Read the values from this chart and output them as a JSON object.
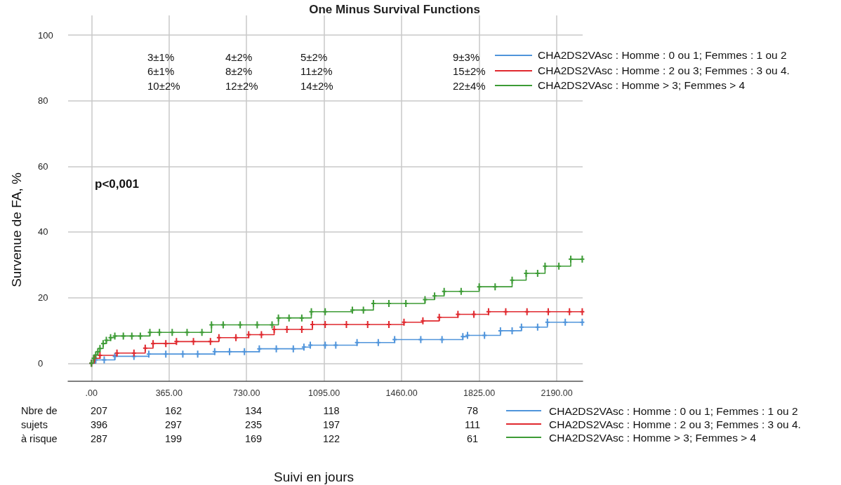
{
  "chart_data": {
    "type": "step",
    "title": "One Minus Survival Functions",
    "ylabel": "Survenue de FA, %",
    "annotations": [
      "p<0,001",
      "Nbre de\nsujets\nà risque",
      "3±1%\n6±1%\n10±2%",
      "4±2%\n8±2%\n12±2%",
      "5±2%\n11±2%\n14±2%",
      "9±3%\n15±2%\n22±4%",
      "207\n396\n287",
      "162\n297\n199",
      "134\n235\n169",
      "118\n197\n122",
      "78\n111\n61",
      "Suivi en jours"
    ],
    "xlim": [
      -110,
      2312
    ],
    "xticks": [
      {
        "value": 0,
        "label": ".00"
      },
      {
        "value": 365,
        "label": "365.00"
      },
      {
        "value": 730,
        "label": "730.00"
      },
      {
        "value": 1095,
        "label": "1095.00"
      },
      {
        "value": 1460,
        "label": "1460.00"
      },
      {
        "value": 1825,
        "label": "1825.00"
      },
      {
        "value": 2190,
        "label": "2190.00"
      }
    ],
    "ylim": [
      -5.5,
      106
    ],
    "yticks": [
      0,
      20,
      40,
      60,
      80,
      100
    ],
    "grid": true,
    "legend": "bottom right",
    "marker": "cross",
    "line_style": "solid",
    "series": [
      {
        "name": "CHA2DS2VAsc : Homme : 0 ou 1; Femmes : 1 ou 2",
        "color": "#4f94db",
        "x": [
          0,
          20,
          60,
          110,
          200,
          270,
          350,
          430,
          500,
          580,
          650,
          720,
          790,
          870,
          950,
          1000,
          1030,
          1100,
          1150,
          1250,
          1350,
          1427,
          1550,
          1650,
          1748,
          1770,
          1850,
          1925,
          1980,
          2024,
          2100,
          2146,
          2230,
          2310
        ],
        "values": [
          0,
          1.0,
          1.0,
          2.1,
          2.1,
          2.8,
          2.8,
          2.8,
          2.8,
          3.5,
          3.5,
          3.5,
          4.4,
          4.4,
          4.4,
          4.9,
          5.5,
          5.5,
          5.5,
          6.3,
          6.3,
          7.2,
          7.2,
          7.2,
          8.1,
          8.5,
          8.5,
          9.9,
          9.9,
          11.0,
          11.0,
          12.5,
          12.5,
          12.5
        ]
      },
      {
        "name": "CHA2DS2VAsc : Homme : 2 ou 3; Femmes : 3 ou 4.",
        "color": "#e0282e",
        "x": [
          0,
          15,
          40,
          120,
          200,
          253,
          290,
          350,
          400,
          480,
          560,
          600,
          680,
          740,
          800,
          860,
          920,
          990,
          1040,
          1100,
          1200,
          1300,
          1400,
          1471,
          1560,
          1637,
          1725,
          1800,
          1869,
          1950,
          2050,
          2150,
          2250,
          2310
        ],
        "values": [
          0,
          1.5,
          2.4,
          3.1,
          3.1,
          4.6,
          6.0,
          6.0,
          6.6,
          6.6,
          6.6,
          7.8,
          7.8,
          8.7,
          8.7,
          10.3,
          10.3,
          10.3,
          11.8,
          11.8,
          11.8,
          11.8,
          11.8,
          12.5,
          12.9,
          14.0,
          14.9,
          14.9,
          15.7,
          15.7,
          15.7,
          15.7,
          15.7,
          15.7
        ]
      },
      {
        "name": "CHA2DS2VAsc : Homme > 3; Femmes > 4",
        "color": "#3c9b35",
        "x": [
          0,
          10,
          20,
          30,
          40,
          55,
          70,
          90,
          110,
          150,
          190,
          230,
          275,
          320,
          380,
          450,
          520,
          565,
          620,
          700,
          780,
          850,
          880,
          930,
          990,
          1035,
          1100,
          1228,
          1280,
          1327,
          1400,
          1480,
          1570,
          1615,
          1660,
          1740,
          1825,
          1900,
          1980,
          2046,
          2100,
          2135,
          2200,
          2256,
          2310
        ],
        "values": [
          0,
          1.5,
          2.5,
          3.5,
          4.5,
          6.0,
          7.0,
          7.8,
          8.3,
          8.3,
          8.3,
          8.3,
          9.4,
          9.4,
          9.4,
          9.4,
          9.4,
          11.7,
          11.7,
          11.7,
          11.7,
          11.7,
          13.8,
          13.8,
          13.8,
          15.7,
          15.7,
          16.2,
          16.2,
          18.2,
          18.2,
          18.2,
          19.4,
          20.5,
          21.9,
          21.9,
          23.3,
          23.3,
          25.3,
          27.4,
          27.4,
          29.6,
          29.6,
          31.7,
          31.7
        ]
      }
    ]
  }
}
